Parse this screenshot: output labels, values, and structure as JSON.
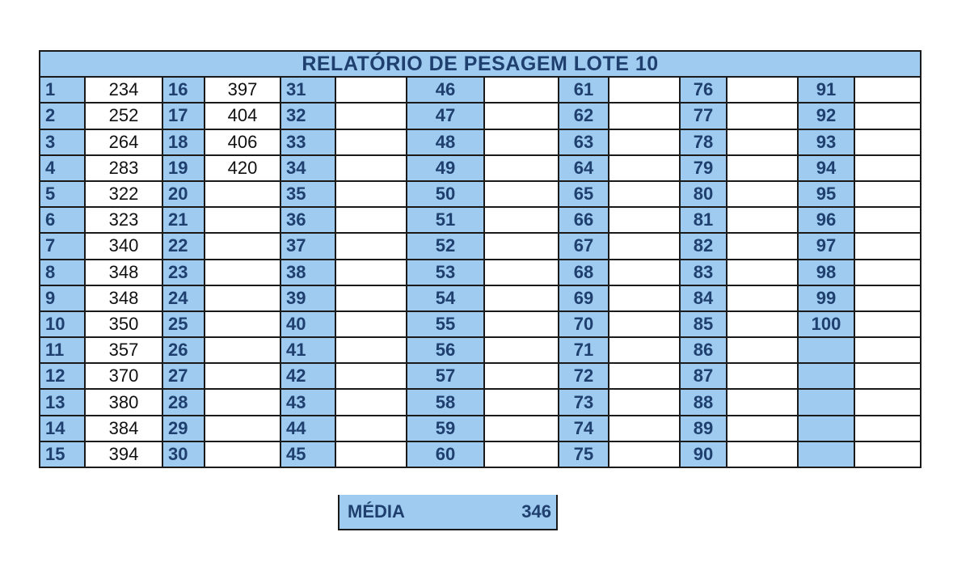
{
  "report": {
    "title": "RELATÓRIO DE PESAGEM LOTE 10",
    "rows": [
      [
        [
          "1",
          "234"
        ],
        [
          "16",
          "397"
        ],
        [
          "31",
          ""
        ],
        [
          "46",
          ""
        ],
        [
          "61",
          ""
        ],
        [
          "76",
          ""
        ],
        [
          "91",
          ""
        ]
      ],
      [
        [
          "2",
          "252"
        ],
        [
          "17",
          "404"
        ],
        [
          "32",
          ""
        ],
        [
          "47",
          ""
        ],
        [
          "62",
          ""
        ],
        [
          "77",
          ""
        ],
        [
          "92",
          ""
        ]
      ],
      [
        [
          "3",
          "264"
        ],
        [
          "18",
          "406"
        ],
        [
          "33",
          ""
        ],
        [
          "48",
          ""
        ],
        [
          "63",
          ""
        ],
        [
          "78",
          ""
        ],
        [
          "93",
          ""
        ]
      ],
      [
        [
          "4",
          "283"
        ],
        [
          "19",
          "420"
        ],
        [
          "34",
          ""
        ],
        [
          "49",
          ""
        ],
        [
          "64",
          ""
        ],
        [
          "79",
          ""
        ],
        [
          "94",
          ""
        ]
      ],
      [
        [
          "5",
          "322"
        ],
        [
          "20",
          ""
        ],
        [
          "35",
          ""
        ],
        [
          "50",
          ""
        ],
        [
          "65",
          ""
        ],
        [
          "80",
          ""
        ],
        [
          "95",
          ""
        ]
      ],
      [
        [
          "6",
          "323"
        ],
        [
          "21",
          ""
        ],
        [
          "36",
          ""
        ],
        [
          "51",
          ""
        ],
        [
          "66",
          ""
        ],
        [
          "81",
          ""
        ],
        [
          "96",
          ""
        ]
      ],
      [
        [
          "7",
          "340"
        ],
        [
          "22",
          ""
        ],
        [
          "37",
          ""
        ],
        [
          "52",
          ""
        ],
        [
          "67",
          ""
        ],
        [
          "82",
          ""
        ],
        [
          "97",
          ""
        ]
      ],
      [
        [
          "8",
          "348"
        ],
        [
          "23",
          ""
        ],
        [
          "38",
          ""
        ],
        [
          "53",
          ""
        ],
        [
          "68",
          ""
        ],
        [
          "83",
          ""
        ],
        [
          "98",
          ""
        ]
      ],
      [
        [
          "9",
          "348"
        ],
        [
          "24",
          ""
        ],
        [
          "39",
          ""
        ],
        [
          "54",
          ""
        ],
        [
          "69",
          ""
        ],
        [
          "84",
          ""
        ],
        [
          "99",
          ""
        ]
      ],
      [
        [
          "10",
          "350"
        ],
        [
          "25",
          ""
        ],
        [
          "40",
          ""
        ],
        [
          "55",
          ""
        ],
        [
          "70",
          ""
        ],
        [
          "85",
          ""
        ],
        [
          "100",
          ""
        ]
      ],
      [
        [
          "11",
          "357"
        ],
        [
          "26",
          ""
        ],
        [
          "41",
          ""
        ],
        [
          "56",
          ""
        ],
        [
          "71",
          ""
        ],
        [
          "86",
          ""
        ],
        [
          "",
          ""
        ]
      ],
      [
        [
          "12",
          "370"
        ],
        [
          "27",
          ""
        ],
        [
          "42",
          ""
        ],
        [
          "57",
          ""
        ],
        [
          "72",
          ""
        ],
        [
          "87",
          ""
        ],
        [
          "",
          ""
        ]
      ],
      [
        [
          "13",
          "380"
        ],
        [
          "28",
          ""
        ],
        [
          "43",
          ""
        ],
        [
          "58",
          ""
        ],
        [
          "73",
          ""
        ],
        [
          "88",
          ""
        ],
        [
          "",
          ""
        ]
      ],
      [
        [
          "14",
          "384"
        ],
        [
          "29",
          ""
        ],
        [
          "44",
          ""
        ],
        [
          "59",
          ""
        ],
        [
          "74",
          ""
        ],
        [
          "89",
          ""
        ],
        [
          "",
          ""
        ]
      ],
      [
        [
          "15",
          "394"
        ],
        [
          "30",
          ""
        ],
        [
          "45",
          ""
        ],
        [
          "60",
          ""
        ],
        [
          "75",
          ""
        ],
        [
          "90",
          ""
        ],
        [
          "",
          ""
        ]
      ]
    ]
  },
  "media": {
    "label": "MÉDIA",
    "value": "346"
  }
}
